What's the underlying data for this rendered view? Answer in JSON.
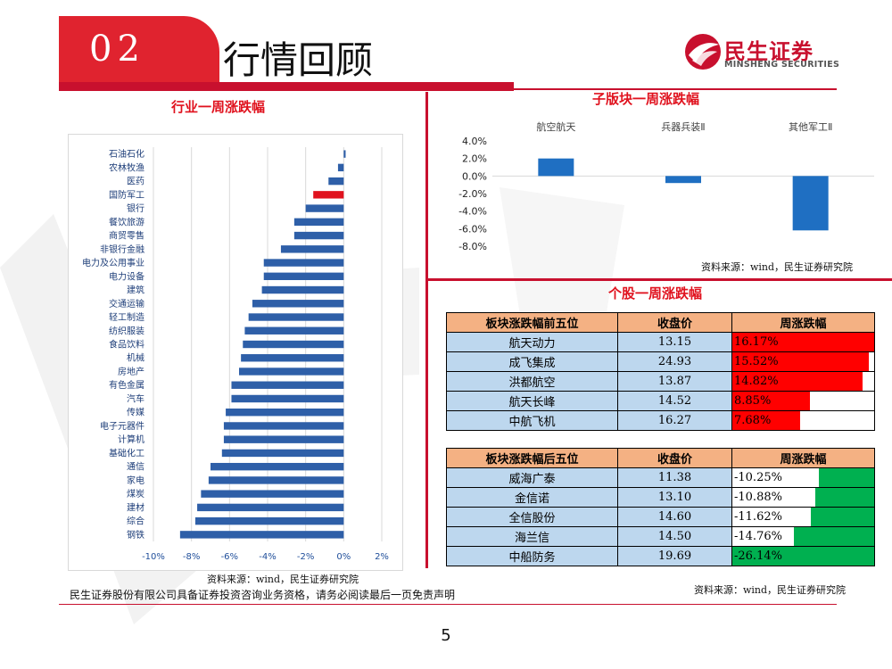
{
  "header": {
    "section_number": "02",
    "title": "行情回顾"
  },
  "logo": {
    "cn": "民生证券",
    "en": "MINSHENG SECURITIES"
  },
  "panels": {
    "industry_title": "行业一周涨跌幅",
    "subsector_title": "子版块一周涨跌幅",
    "stock_title": "个股一周涨跌幅"
  },
  "sources": {
    "industry": "资料来源：wind，民生证券研究院",
    "subsector": "资料来源：wind，民生证券研究院",
    "stocks": "资料来源：wind，民生证券研究院"
  },
  "footer": {
    "disclaimer": "民生证券股份有限公司具备证券投资咨询业务资格，请务必阅读最后一页免责声明",
    "page_number": "5"
  },
  "colors": {
    "brand_red": "#c8102e",
    "bar_blue": "#2e5fa8",
    "highlight_red": "#e0121e",
    "subsector_blue": "#1f6fc2",
    "up_red": "#ff0000",
    "down_green": "#00b050",
    "header_orange": "#f4b183",
    "cell_blue": "#bdd7ee"
  },
  "chart_data": [
    {
      "type": "bar",
      "orientation": "horizontal",
      "title": "行业一周涨跌幅",
      "categories": [
        "石油石化",
        "农林牧渔",
        "医药",
        "国防军工",
        "银行",
        "餐饮旅游",
        "商贸零售",
        "非银行金融",
        "电力及公用事业",
        "电力设备",
        "建筑",
        "交通运输",
        "轻工制造",
        "纺织服装",
        "食品饮料",
        "机械",
        "房地产",
        "有色金属",
        "汽车",
        "传媒",
        "电子元器件",
        "计算机",
        "基础化工",
        "通信",
        "家电",
        "煤炭",
        "建材",
        "综合",
        "钢铁"
      ],
      "values": [
        0.1,
        -0.3,
        -0.8,
        -1.6,
        -2.0,
        -2.6,
        -2.6,
        -3.3,
        -4.2,
        -4.2,
        -4.3,
        -4.8,
        -5.0,
        -5.2,
        -5.3,
        -5.4,
        -5.5,
        -5.9,
        -5.9,
        -6.2,
        -6.3,
        -6.3,
        -6.4,
        -7.0,
        -7.1,
        -7.5,
        -7.7,
        -7.8,
        -8.6
      ],
      "highlight": "国防军工",
      "xlim": [
        -10,
        2
      ],
      "x_ticks": [
        "-10%",
        "-8%",
        "-6%",
        "-4%",
        "-2%",
        "0%",
        "2%"
      ],
      "grid": true
    },
    {
      "type": "bar",
      "title": "子版块一周涨跌幅",
      "categories": [
        "航空航天",
        "兵器兵装Ⅱ",
        "其他军工Ⅱ"
      ],
      "values": [
        2.0,
        -0.8,
        -6.2
      ],
      "ylim": [
        -8,
        4
      ],
      "y_ticks": [
        "4.0%",
        "2.0%",
        "0.0%",
        "-2.0%",
        "-4.0%",
        "-6.0%",
        "-8.0%"
      ]
    },
    {
      "type": "table",
      "title": "板块涨跌幅前五位",
      "columns": [
        "板块涨跌幅前五位",
        "收盘价",
        "周涨跌幅"
      ],
      "rows": [
        {
          "name": "航天动力",
          "close": "13.15",
          "pct": "16.17%",
          "value": 16.17
        },
        {
          "name": "成飞集成",
          "close": "24.93",
          "pct": "15.52%",
          "value": 15.52
        },
        {
          "name": "洪都航空",
          "close": "13.87",
          "pct": "14.82%",
          "value": 14.82
        },
        {
          "name": "航天长峰",
          "close": "14.52",
          "pct": "8.85%",
          "value": 8.85
        },
        {
          "name": "中航飞机",
          "close": "16.27",
          "pct": "7.68%",
          "value": 7.68
        }
      ]
    },
    {
      "type": "table",
      "title": "板块涨跌幅后五位",
      "columns": [
        "板块涨跌幅后五位",
        "收盘价",
        "周涨跌幅"
      ],
      "rows": [
        {
          "name": "威海广泰",
          "close": "11.38",
          "pct": "-10.25%",
          "value": -10.25
        },
        {
          "name": "金信诺",
          "close": "13.10",
          "pct": "-10.88%",
          "value": -10.88
        },
        {
          "name": "全信股份",
          "close": "14.60",
          "pct": "-11.62%",
          "value": -11.62
        },
        {
          "name": "海兰信",
          "close": "14.50",
          "pct": "-14.76%",
          "value": -14.76
        },
        {
          "name": "中船防务",
          "close": "19.69",
          "pct": "-26.14%",
          "value": -26.14
        }
      ]
    }
  ]
}
